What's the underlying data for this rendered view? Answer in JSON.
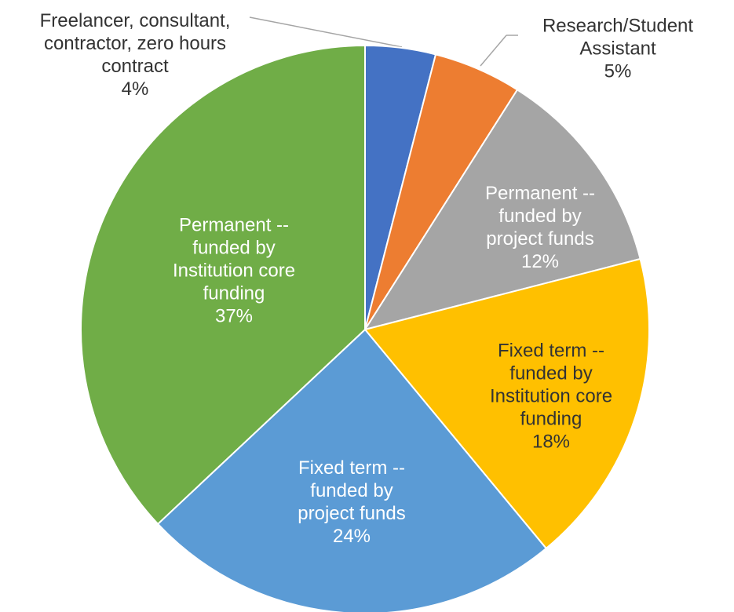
{
  "chart_data": {
    "type": "pie",
    "categories": [
      "Freelancer, consultant, contractor, zero hours contract",
      "Research/Student Assistant",
      "Permanent -- funded by project funds",
      "Fixed term -- funded by Institution core funding",
      "Fixed term -- funded by project funds",
      "Permanent -- funded by Institution core funding"
    ],
    "values": [
      4,
      5,
      12,
      18,
      24,
      37
    ],
    "value_labels": [
      "4%",
      "5%",
      "12%",
      "18%",
      "24%",
      "37%"
    ],
    "colors": [
      "#4472c4",
      "#ed7d31",
      "#a5a5a5",
      "#ffc000",
      "#5b9bd5",
      "#70ad47"
    ]
  }
}
